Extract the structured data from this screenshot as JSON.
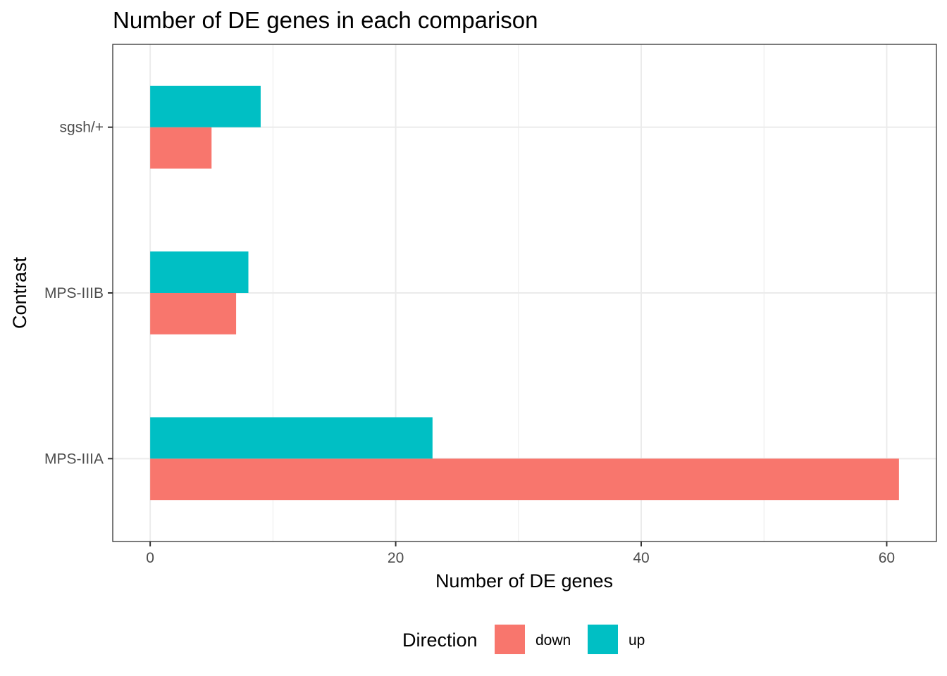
{
  "chart_data": {
    "type": "bar",
    "orientation": "horizontal",
    "title": "Number of DE genes in each comparison",
    "xlabel": "Number of DE genes",
    "ylabel": "Contrast",
    "categories": [
      "MPS-IIIA",
      "MPS-IIIB",
      "sgsh/+"
    ],
    "series": [
      {
        "name": "down",
        "color": "#F8766D",
        "values": [
          61,
          7,
          5
        ]
      },
      {
        "name": "up",
        "color": "#00BFC4",
        "values": [
          23,
          8,
          9
        ]
      }
    ],
    "xlim": [
      -3.05,
      64.05
    ],
    "xticks": [
      0,
      20,
      40,
      60
    ],
    "grid": true,
    "legend": {
      "title": "Direction",
      "position": "bottom",
      "entries": [
        "down",
        "up"
      ]
    }
  }
}
